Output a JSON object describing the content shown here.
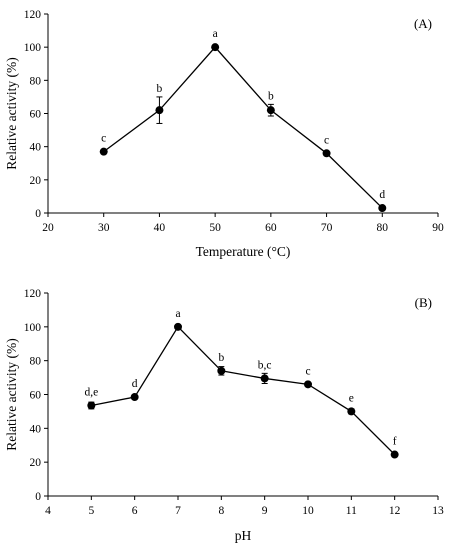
{
  "chart_data": [
    {
      "type": "line",
      "panel_label": "(A)",
      "xlabel": "Temperature (°C)",
      "ylabel": "Relative activity (%)",
      "xlim": [
        20,
        90
      ],
      "ylim": [
        0,
        120
      ],
      "xticks": [
        20,
        30,
        40,
        50,
        60,
        70,
        80,
        90
      ],
      "yticks": [
        0,
        20,
        40,
        60,
        80,
        100,
        120
      ],
      "grid": false,
      "series": [
        {
          "x": [
            30,
            40,
            50,
            60,
            70,
            80
          ],
          "y": [
            37,
            62,
            100,
            62,
            36,
            3
          ],
          "error": [
            0,
            8,
            0,
            3.5,
            0,
            0
          ],
          "labels": [
            "c",
            "b",
            "a",
            "b",
            "c",
            "d"
          ]
        }
      ]
    },
    {
      "type": "line",
      "panel_label": "(B)",
      "xlabel": "pH",
      "ylabel": "Relative activity (%)",
      "xlim": [
        4,
        13
      ],
      "ylim": [
        0,
        120
      ],
      "xticks": [
        4,
        5,
        6,
        7,
        8,
        9,
        10,
        11,
        12,
        13
      ],
      "yticks": [
        0,
        20,
        40,
        60,
        80,
        100,
        120
      ],
      "grid": false,
      "series": [
        {
          "x": [
            5,
            6,
            7,
            8,
            9,
            10,
            11,
            12
          ],
          "y": [
            53.5,
            58.5,
            100,
            74,
            69.5,
            66,
            50,
            24.5
          ],
          "error": [
            2,
            1,
            0,
            2.5,
            3,
            1,
            1.5,
            1
          ],
          "labels": [
            "d,e",
            "d",
            "a",
            "b",
            "b,c",
            "c",
            "e",
            "f"
          ]
        }
      ]
    }
  ]
}
